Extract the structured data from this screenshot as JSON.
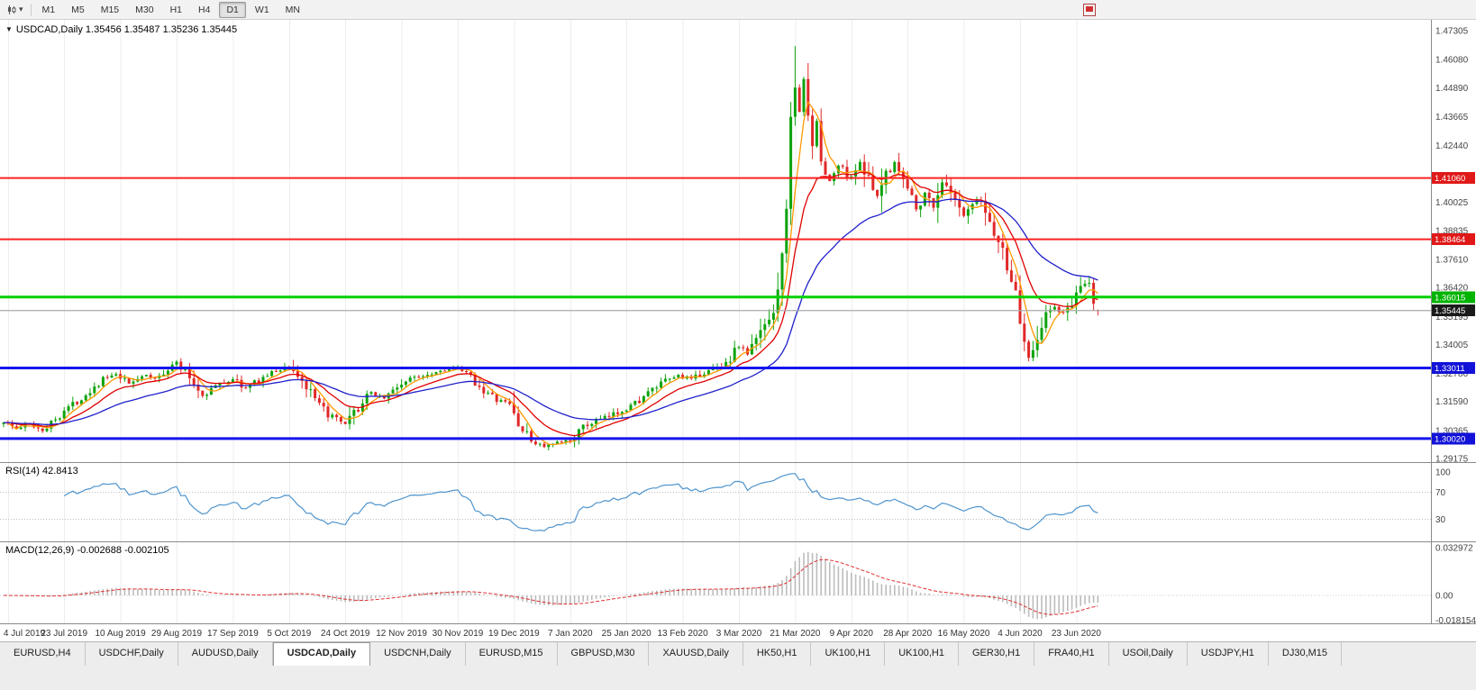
{
  "toolbar": {
    "timeframes": [
      "M1",
      "M5",
      "M15",
      "M30",
      "H1",
      "H4",
      "D1",
      "W1",
      "MN"
    ],
    "active_timeframe": "D1"
  },
  "chart": {
    "title_line": "USDCAD,Daily 1.35456 1.35487 1.35236 1.35445",
    "symbol": "USDCAD",
    "period": "Daily"
  },
  "indicators": {
    "rsi": {
      "label": "RSI(14) 42.8413",
      "axis_labels": [
        "100",
        "70",
        "30"
      ]
    },
    "macd": {
      "label": "MACD(12,26,9) -0.002688 -0.002105",
      "axis_labels": [
        "0.032972",
        "0.00",
        "-0.018154"
      ]
    }
  },
  "tabs": {
    "items": [
      "EURUSD,H4",
      "USDCHF,Daily",
      "AUDUSD,Daily",
      "USDCAD,Daily",
      "USDCNH,Daily",
      "EURUSD,M15",
      "GBPUSD,M30",
      "XAUUSD,Daily",
      "HK50,H1",
      "UK100,H1",
      "UK100,H1",
      "GER30,H1",
      "FRA40,H1",
      "USOil,Daily",
      "USDJPY,H1",
      "DJ30,M15"
    ],
    "active_index": 3
  },
  "chart_data": {
    "type": "candlestick",
    "symbol": "USDCAD",
    "timeframe": "Daily",
    "quote": {
      "open": 1.35456,
      "high": 1.35487,
      "low": 1.35236,
      "close": 1.35445
    },
    "y_axis_ticks": [
      "1.47305",
      "1.46080",
      "1.44890",
      "1.43665",
      "1.42440",
      "1.40025",
      "1.38835",
      "1.37610",
      "1.36420",
      "1.35195",
      "1.34005",
      "1.32780",
      "1.31590",
      "1.30365",
      "1.29175"
    ],
    "x_labels": [
      "4 Jul 2019",
      "23 Jul 2019",
      "10 Aug 2019",
      "29 Aug 2019",
      "17 Sep 2019",
      "5 Oct 2019",
      "24 Oct 2019",
      "12 Nov 2019",
      "30 Nov 2019",
      "19 Dec 2019",
      "7 Jan 2020",
      "25 Jan 2020",
      "13 Feb 2020",
      "3 Mar 2020",
      "21 Mar 2020",
      "9 Apr 2020",
      "28 Apr 2020",
      "16 May 2020",
      "4 Jun 2020",
      "23 Jun 2020"
    ],
    "visible_price_range": [
      1.29175,
      1.47305
    ],
    "levels": [
      {
        "label": "1.41060",
        "price": 1.4106,
        "color": "#ff2222",
        "tag_color": "#e01818",
        "width": 2,
        "style": "line"
      },
      {
        "label": "1.38464",
        "price": 1.38464,
        "color": "#ff2222",
        "tag_color": "#e01818",
        "width": 2,
        "style": "line"
      },
      {
        "label": "1.36015",
        "price": 1.36015,
        "color": "#00d000",
        "tag_color": "#00b400",
        "width": 3,
        "style": "line"
      },
      {
        "label": "1.35445",
        "price": 1.35445,
        "color": "#aaaaaa",
        "tag_color": "#1a1a1a",
        "width": 1,
        "style": "bid"
      },
      {
        "label": "1.33011",
        "price": 1.33011,
        "color": "#1515f0",
        "tag_color": "#1212d8",
        "width": 3,
        "style": "line"
      },
      {
        "label": "1.30020",
        "price": 1.3002,
        "color": "#1515f0",
        "tag_color": "#1212d8",
        "width": 3,
        "style": "line"
      }
    ],
    "candle_count": 254,
    "candles_per_x_label": 13,
    "first_label_candle_index": 1,
    "up_color": "#0da30d",
    "down_color": "#e02828",
    "price_path_anchors": [
      [
        0,
        1.3075
      ],
      [
        3,
        1.3042
      ],
      [
        6,
        1.3065
      ],
      [
        9,
        1.3038
      ],
      [
        12,
        1.3085
      ],
      [
        14,
        1.3125
      ],
      [
        17,
        1.316
      ],
      [
        20,
        1.3205
      ],
      [
        23,
        1.3255
      ],
      [
        26,
        1.327
      ],
      [
        29,
        1.3235
      ],
      [
        32,
        1.327
      ],
      [
        35,
        1.3255
      ],
      [
        38,
        1.33
      ],
      [
        40,
        1.3325
      ],
      [
        43,
        1.326
      ],
      [
        46,
        1.3185
      ],
      [
        49,
        1.3225
      ],
      [
        53,
        1.3255
      ],
      [
        56,
        1.3215
      ],
      [
        59,
        1.325
      ],
      [
        62,
        1.328
      ],
      [
        66,
        1.331
      ],
      [
        69,
        1.3245
      ],
      [
        72,
        1.316
      ],
      [
        75,
        1.3105
      ],
      [
        79,
        1.3058
      ],
      [
        82,
        1.313
      ],
      [
        85,
        1.3195
      ],
      [
        88,
        1.3175
      ],
      [
        92,
        1.3235
      ],
      [
        95,
        1.3262
      ],
      [
        99,
        1.328
      ],
      [
        102,
        1.3295
      ],
      [
        105,
        1.33
      ],
      [
        108,
        1.3262
      ],
      [
        111,
        1.3205
      ],
      [
        114,
        1.3165
      ],
      [
        117,
        1.315
      ],
      [
        119,
        1.3062
      ],
      [
        122,
        1.2992
      ],
      [
        125,
        1.2968
      ],
      [
        128,
        1.2982
      ],
      [
        131,
        1.2995
      ],
      [
        134,
        1.3048
      ],
      [
        137,
        1.3078
      ],
      [
        140,
        1.3095
      ],
      [
        144,
        1.3132
      ],
      [
        147,
        1.3165
      ],
      [
        150,
        1.3208
      ],
      [
        153,
        1.3245
      ],
      [
        156,
        1.327
      ],
      [
        159,
        1.3252
      ],
      [
        162,
        1.3282
      ],
      [
        165,
        1.3305
      ],
      [
        168,
        1.334
      ],
      [
        170,
        1.3395
      ],
      [
        172,
        1.336
      ],
      [
        174,
        1.342
      ],
      [
        176,
        1.349
      ],
      [
        178,
        1.356
      ],
      [
        180,
        1.376
      ],
      [
        181,
        1.401
      ],
      [
        182,
        1.433
      ],
      [
        183,
        1.45
      ],
      [
        184,
        1.439
      ],
      [
        185,
        1.4515
      ],
      [
        186,
        1.441
      ],
      [
        187,
        1.426
      ],
      [
        188,
        1.432
      ],
      [
        189,
        1.418
      ],
      [
        191,
        1.409
      ],
      [
        193,
        1.416
      ],
      [
        196,
        1.4105
      ],
      [
        198,
        1.418
      ],
      [
        200,
        1.409
      ],
      [
        202,
        1.402
      ],
      [
        204,
        1.4125
      ],
      [
        206,
        1.418
      ],
      [
        208,
        1.409
      ],
      [
        209,
        1.406
      ],
      [
        211,
        1.398
      ],
      [
        213,
        1.404
      ],
      [
        215,
        1.399
      ],
      [
        217,
        1.409
      ],
      [
        219,
        1.403
      ],
      [
        222,
        1.394
      ],
      [
        224,
        1.399
      ],
      [
        226,
        1.401
      ],
      [
        227,
        1.396
      ],
      [
        229,
        1.388
      ],
      [
        231,
        1.379
      ],
      [
        233,
        1.369
      ],
      [
        234,
        1.36
      ],
      [
        235,
        1.35
      ],
      [
        236,
        1.341
      ],
      [
        237,
        1.335
      ],
      [
        239,
        1.3445
      ],
      [
        241,
        1.3525
      ],
      [
        243,
        1.356
      ],
      [
        245,
        1.353
      ],
      [
        247,
        1.358
      ],
      [
        249,
        1.3625
      ],
      [
        250,
        1.366
      ],
      [
        251,
        1.3645
      ],
      [
        252,
        1.3585
      ],
      [
        253,
        1.3545
      ]
    ],
    "peak": [
      183,
      1.4665
    ],
    "trough": [
      126,
      1.2952
    ],
    "moving_averages": [
      {
        "color": "#ff9900",
        "period": 5
      },
      {
        "color": "#e00000",
        "period": 13
      },
      {
        "color": "#2020cc",
        "period": 34
      }
    ],
    "rsi": {
      "period": 14,
      "current": 42.8413,
      "color": "#4f94cd",
      "guide_levels": [
        70,
        30
      ]
    },
    "macd": {
      "fast": 12,
      "slow": 26,
      "signal": 9,
      "current": [
        -0.002688,
        -0.002105
      ],
      "histogram_color": "#bcbcbc",
      "signal_color": "#e03030",
      "axis_max": 0.032972,
      "axis_min": -0.018154
    }
  }
}
